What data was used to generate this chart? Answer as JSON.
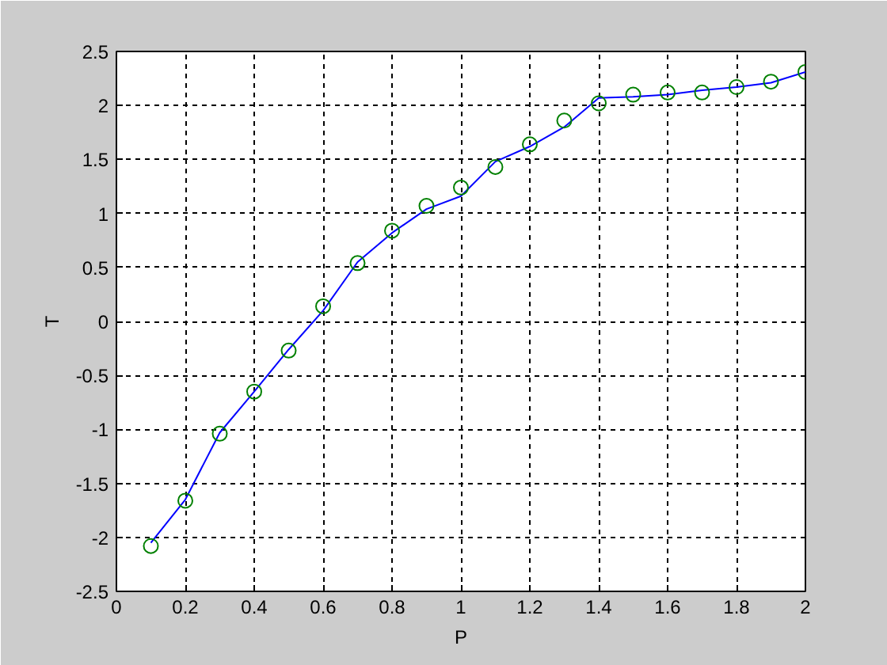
{
  "chart_data": {
    "type": "line",
    "xlabel": "P",
    "ylabel": "T",
    "x": [
      0.1,
      0.2,
      0.3,
      0.4,
      0.5,
      0.6,
      0.7,
      0.8,
      0.9,
      1.0,
      1.1,
      1.2,
      1.3,
      1.4,
      1.5,
      1.6,
      1.7,
      1.8,
      1.9,
      2.0
    ],
    "series": [
      {
        "color": "#0000ff",
        "line_style": "solid",
        "marker": "none",
        "values": [
          -2.05,
          -1.65,
          -1.03,
          -0.65,
          -0.26,
          0.1,
          0.55,
          0.82,
          1.04,
          1.16,
          1.48,
          1.62,
          1.8,
          2.07,
          2.08,
          2.1,
          2.14,
          2.17,
          2.21,
          2.31
        ]
      },
      {
        "type": "scatter",
        "color": "#008000",
        "marker": "circle",
        "values": [
          -2.08,
          -1.66,
          -1.04,
          -0.65,
          -0.27,
          0.14,
          0.54,
          0.84,
          1.07,
          1.24,
          1.43,
          1.64,
          1.86,
          2.02,
          2.1,
          2.12,
          2.12,
          2.17,
          2.22,
          2.31
        ]
      }
    ],
    "xlim": [
      0,
      2
    ],
    "ylim": [
      -2.5,
      2.5
    ],
    "xticks": [
      0,
      0.2,
      0.4,
      0.6,
      0.8,
      1,
      1.2,
      1.4,
      1.6,
      1.8,
      2
    ],
    "yticks": [
      -2.5,
      -2,
      -1.5,
      -1,
      -0.5,
      0,
      0.5,
      1,
      1.5,
      2,
      2.5
    ],
    "grid": true
  }
}
